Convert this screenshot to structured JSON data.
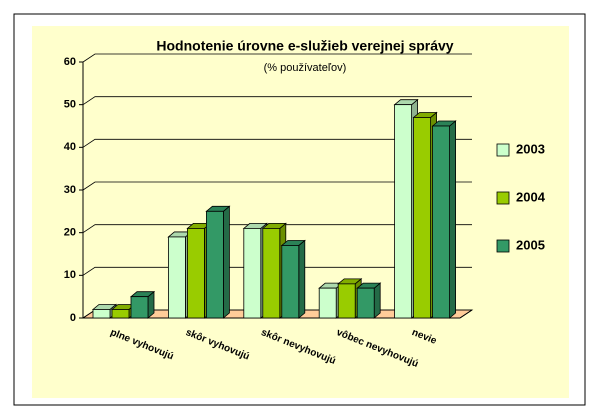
{
  "chart_data": {
    "type": "bar",
    "title": "Hodnotenie úrovne e-služieb verejnej správy",
    "subtitle": "(% používateľov)",
    "categories": [
      "plne vyhovujú",
      "skôr vyhovujú",
      "skôr nevyhovujú",
      "vôbec nevyhovujú",
      "nevie"
    ],
    "series": [
      {
        "name": "2003",
        "color": "#ccffcc",
        "values": [
          2,
          19,
          21,
          7,
          50
        ]
      },
      {
        "name": "2004",
        "color": "#99cc00",
        "values": [
          2,
          21,
          21,
          8,
          47
        ]
      },
      {
        "name": "2005",
        "color": "#339966",
        "values": [
          5,
          25,
          17,
          7,
          45
        ]
      }
    ],
    "ylim": [
      0,
      60
    ],
    "yticks": [
      0,
      10,
      20,
      30,
      40,
      50,
      60
    ],
    "grid": true,
    "legend": "right"
  }
}
